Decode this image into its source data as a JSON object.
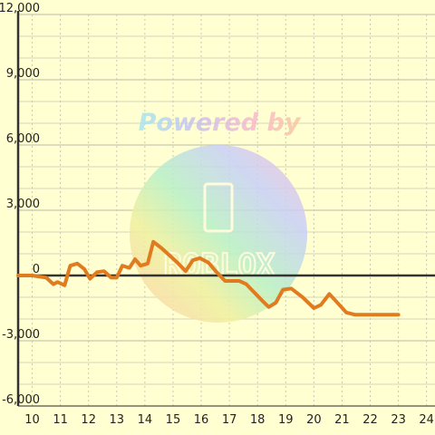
{
  "colors": {
    "background": "#ffffd2",
    "line": "#e07b1f",
    "grid": "#c8c8b4",
    "axis": "#333333"
  },
  "watermark": {
    "text": "Powered by",
    "logo_text": "ROBLOX"
  },
  "chart_data": {
    "type": "line",
    "title": "",
    "xlabel": "",
    "ylabel": "",
    "xlim": [
      9.5,
      24.3
    ],
    "ylim": [
      -6000,
      12000
    ],
    "x_ticks": [
      10,
      11,
      12,
      13,
      14,
      15,
      16,
      17,
      18,
      19,
      20,
      21,
      22,
      23,
      24
    ],
    "x_tick_labels": [
      "10",
      "11",
      "12",
      "13",
      "14",
      "15",
      "16",
      "17",
      "18",
      "19",
      "20",
      "21",
      "22",
      "23",
      "24"
    ],
    "y_ticks": [
      -6000,
      -3000,
      0,
      3000,
      6000,
      9000,
      12000
    ],
    "y_tick_labels": [
      "-6,000",
      "-3,000",
      "0",
      "3,000",
      "6,000",
      "9,000",
      "12,000"
    ],
    "grid": true,
    "series": [
      {
        "values": [
          [
            9.5,
            0
          ],
          [
            10.0,
            0
          ],
          [
            10.5,
            -100
          ],
          [
            10.75,
            -400
          ],
          [
            10.9,
            -300
          ],
          [
            11.15,
            -450
          ],
          [
            11.35,
            450
          ],
          [
            11.6,
            550
          ],
          [
            11.85,
            300
          ],
          [
            12.05,
            -150
          ],
          [
            12.3,
            150
          ],
          [
            12.55,
            200
          ],
          [
            12.8,
            -100
          ],
          [
            13.0,
            -100
          ],
          [
            13.2,
            450
          ],
          [
            13.45,
            350
          ],
          [
            13.65,
            750
          ],
          [
            13.85,
            450
          ],
          [
            14.1,
            550
          ],
          [
            14.3,
            1550
          ],
          [
            14.6,
            1250
          ],
          [
            15.15,
            600
          ],
          [
            15.45,
            200
          ],
          [
            15.7,
            700
          ],
          [
            15.95,
            800
          ],
          [
            16.25,
            600
          ],
          [
            16.55,
            150
          ],
          [
            16.85,
            -250
          ],
          [
            17.35,
            -250
          ],
          [
            17.6,
            -400
          ],
          [
            18.2,
            -1200
          ],
          [
            18.4,
            -1450
          ],
          [
            18.65,
            -1250
          ],
          [
            18.9,
            -650
          ],
          [
            19.2,
            -600
          ],
          [
            19.6,
            -1000
          ],
          [
            20.0,
            -1500
          ],
          [
            20.25,
            -1350
          ],
          [
            20.55,
            -850
          ],
          [
            20.8,
            -1200
          ],
          [
            21.15,
            -1700
          ],
          [
            21.45,
            -1800
          ],
          [
            23.0,
            -1800
          ]
        ]
      }
    ]
  }
}
